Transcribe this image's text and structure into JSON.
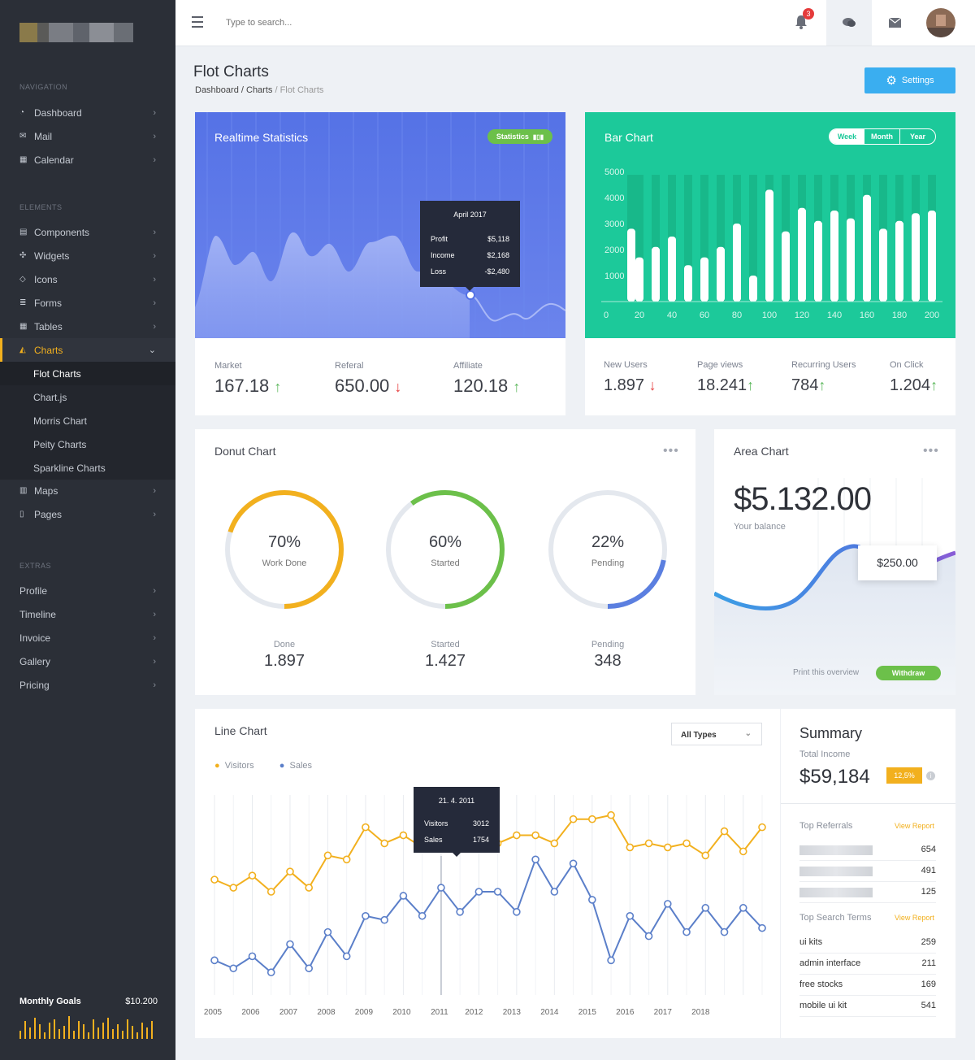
{
  "search": {
    "placeholder": "Type to search..."
  },
  "topbar": {
    "notif_count": "3"
  },
  "nav": {
    "sec1": "NAVIGATION",
    "sec2": "ELEMENTS",
    "sec3": "EXTRAS",
    "items": [
      {
        "label": "Dashboard"
      },
      {
        "label": "Mail"
      },
      {
        "label": "Calendar"
      },
      {
        "label": "Components"
      },
      {
        "label": "Widgets"
      },
      {
        "label": "Icons"
      },
      {
        "label": "Forms"
      },
      {
        "label": "Tables"
      },
      {
        "label": "Charts"
      },
      {
        "label": "Maps"
      },
      {
        "label": "Pages"
      }
    ],
    "sub": [
      {
        "label": "Flot Charts"
      },
      {
        "label": "Chart.js"
      },
      {
        "label": "Morris Chart"
      },
      {
        "label": "Peity Charts"
      },
      {
        "label": "Sparkline Charts"
      }
    ],
    "extras": [
      {
        "label": "Profile"
      },
      {
        "label": "Timeline"
      },
      {
        "label": "Invoice"
      },
      {
        "label": "Gallery"
      },
      {
        "label": "Pricing"
      }
    ]
  },
  "goals": {
    "label": "Monthly Goals",
    "value": "$10.200"
  },
  "page": {
    "title": "Flot Charts",
    "crumb1": "Dashboard",
    "crumb_sep1": " / ",
    "crumb2": "Charts",
    "crumb_sep2": " / ",
    "crumb3": "Flot Charts",
    "settings": "Settings"
  },
  "realtime": {
    "title": "Realtime Statistics",
    "badge": "Statistics",
    "tooltip": {
      "title": "April 2017",
      "rows": [
        {
          "k": "Profit",
          "v": "$5,118"
        },
        {
          "k": "Income",
          "v": "$2,168"
        },
        {
          "k": "Loss",
          "v": "-$2,480"
        }
      ]
    },
    "stats": [
      {
        "label": "Market",
        "value": "167.18"
      },
      {
        "label": "Referal",
        "value": "650.00"
      },
      {
        "label": "Affiliate",
        "value": "120.18"
      }
    ]
  },
  "bar": {
    "title": "Bar Chart",
    "tabs": [
      "Week",
      "Month",
      "Year"
    ],
    "stats": [
      {
        "label": "New Users",
        "value": "1.897"
      },
      {
        "label": "Page views",
        "value": "18.241"
      },
      {
        "label": "Recurring Users",
        "value": "784"
      },
      {
        "label": "On Click",
        "value": "1.204"
      }
    ]
  },
  "donut": {
    "title": "Donut Chart",
    "items": [
      {
        "pct": "70%",
        "sub": "Work Done",
        "label": "Done",
        "value": "1.897",
        "frac": 0.7,
        "color": "#f2b01e"
      },
      {
        "pct": "60%",
        "sub": "Started",
        "label": "Started",
        "value": "1.427",
        "frac": 0.6,
        "color": "#6cc04a"
      },
      {
        "pct": "22%",
        "sub": "Pending",
        "label": "Pending",
        "value": "348",
        "frac": 0.22,
        "color": "#5b7fe0"
      }
    ]
  },
  "area": {
    "title": "Area Chart",
    "amount": "$5.132.00",
    "balance": "Your balance",
    "tooltip": "$250.00",
    "print": "Print this overview",
    "withdraw": "Withdraw"
  },
  "line": {
    "title": "Line Chart",
    "legend": [
      "Visitors",
      "Sales"
    ],
    "select": "All Types",
    "tooltip": {
      "title": "21. 4. 2011",
      "rows": [
        {
          "k": "Visitors",
          "v": "3012"
        },
        {
          "k": "Sales",
          "v": "1754"
        }
      ]
    }
  },
  "summary": {
    "title": "Summary",
    "sub": "Total Income",
    "amount": "$59,184",
    "badge": "12,5%",
    "ref_title": "Top Referrals",
    "view": "View Report",
    "referrals": [
      "654",
      "491",
      "125"
    ],
    "search_title": "Top Search Terms",
    "terms": [
      {
        "k": "ui kits",
        "v": "259"
      },
      {
        "k": "admin interface",
        "v": "211"
      },
      {
        "k": "free stocks",
        "v": "169"
      },
      {
        "k": "mobile ui kit",
        "v": "541"
      }
    ]
  },
  "colors": {
    "blue": "#5a7ff0",
    "green": "#1cc99a",
    "yellow": "#f2b01e",
    "sidebar": "#2b2f37"
  },
  "chart_data": [
    {
      "type": "bar",
      "title": "Bar Chart",
      "ylim": [
        0,
        5000
      ],
      "y_ticks": [
        1000,
        2000,
        3000,
        4000,
        5000
      ],
      "x_ticks": [
        0,
        20,
        40,
        60,
        80,
        100,
        120,
        140,
        160,
        180,
        200
      ],
      "x": [
        10,
        20,
        30,
        40,
        50,
        60,
        70,
        80,
        90,
        100,
        110,
        120,
        130,
        140,
        150,
        160,
        170,
        180,
        190,
        200
      ],
      "values": [
        2800,
        1700,
        2100,
        2500,
        1400,
        1700,
        2100,
        3000,
        1000,
        4300,
        2700,
        3600,
        3100,
        3500,
        3200,
        4100,
        2800,
        3100,
        3400,
        3500
      ]
    },
    {
      "type": "line",
      "title": "Line Chart",
      "series": [
        {
          "name": "Visitors",
          "values": [
            2450,
            2350,
            2500,
            2300,
            2550,
            2350,
            2750,
            2700,
            3100,
            2900,
            3000,
            2850,
            3050,
            2850,
            3050,
            2900,
            3000,
            3000,
            2900,
            3200,
            3200,
            3250,
            2850,
            2900,
            2850,
            2900,
            2750,
            3050,
            2800,
            3100
          ]
        },
        {
          "name": "Sales",
          "values": [
            1450,
            1350,
            1500,
            1300,
            1650,
            1350,
            1800,
            1500,
            2000,
            1950,
            2250,
            2000,
            2350,
            2050,
            2300,
            2300,
            2050,
            2700,
            2300,
            2650,
            2200,
            1450,
            2000,
            1750,
            2150,
            1800,
            2100,
            1800,
            2100,
            1850
          ]
        }
      ],
      "x_ticks": [
        "2005",
        "2006",
        "2007",
        "2008",
        "2009",
        "2010",
        "2011",
        "2012",
        "2013",
        "2014",
        "2015",
        "2016",
        "2017",
        "2018"
      ]
    }
  ]
}
